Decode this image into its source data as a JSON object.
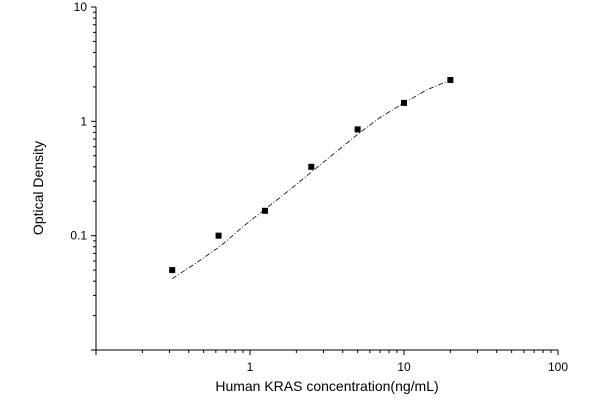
{
  "chart_data": {
    "type": "scatter",
    "title": "",
    "xlabel": "Human KRAS concentration(ng/mL)",
    "ylabel": "Optical Density",
    "x_scale": "log",
    "y_scale": "log",
    "xlim": [
      0.1,
      100
    ],
    "ylim": [
      0.01,
      10
    ],
    "x_tick_values": [
      1,
      10,
      100
    ],
    "x_tick_labels": [
      "1",
      "10",
      "100"
    ],
    "y_tick_values": [
      0.1,
      1,
      10
    ],
    "y_tick_labels": [
      "0.1",
      "1",
      "10"
    ],
    "grid": false,
    "series": [
      {
        "marker": "square",
        "color": "#000000",
        "x": [
          0.3125,
          0.625,
          1.25,
          2.5,
          5,
          10,
          20
        ],
        "y": [
          0.05,
          0.1,
          0.165,
          0.4,
          0.85,
          1.45,
          2.3
        ]
      }
    ],
    "fit_curve": {
      "style": "dash-dot",
      "color": "#000000",
      "x": [
        0.3125,
        0.45,
        0.65,
        0.9,
        1.25,
        1.8,
        2.5,
        3.5,
        5,
        7,
        10,
        14,
        20
      ],
      "y": [
        0.042,
        0.058,
        0.082,
        0.12,
        0.17,
        0.25,
        0.36,
        0.52,
        0.77,
        1.08,
        1.45,
        1.88,
        2.3
      ]
    }
  }
}
